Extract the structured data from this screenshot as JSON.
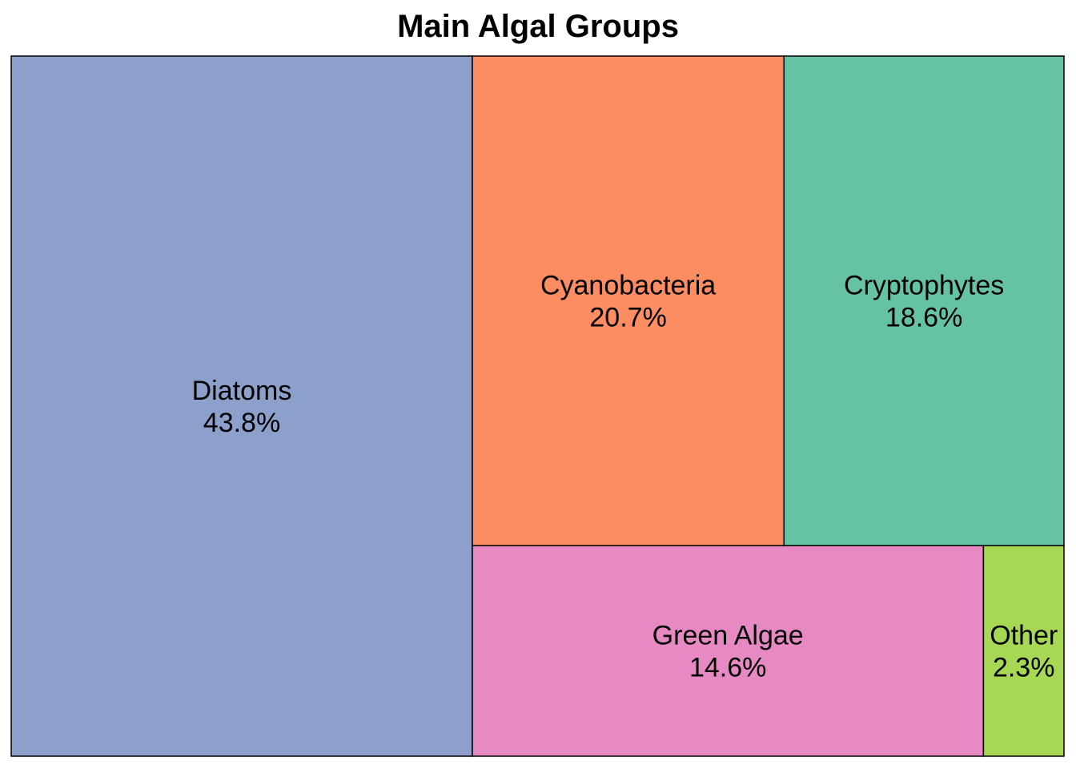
{
  "chart_data": {
    "type": "treemap",
    "title": "Main Algal Groups",
    "unit": "%",
    "items": [
      {
        "name": "Diatoms",
        "value": 43.8,
        "label": "43.8%",
        "color": "#8DA0CB"
      },
      {
        "name": "Cyanobacteria",
        "value": 20.7,
        "label": "20.7%",
        "color": "#FC8D62"
      },
      {
        "name": "Cryptophytes",
        "value": 18.6,
        "label": "18.6%",
        "color": "#66C2A5"
      },
      {
        "name": "Green Algae",
        "value": 14.6,
        "label": "14.6%",
        "color": "#E78AC3"
      },
      {
        "name": "Other",
        "value": 2.3,
        "label": "2.3%",
        "color": "#A6D854"
      }
    ],
    "border_color": "#000000",
    "legend": "none"
  }
}
